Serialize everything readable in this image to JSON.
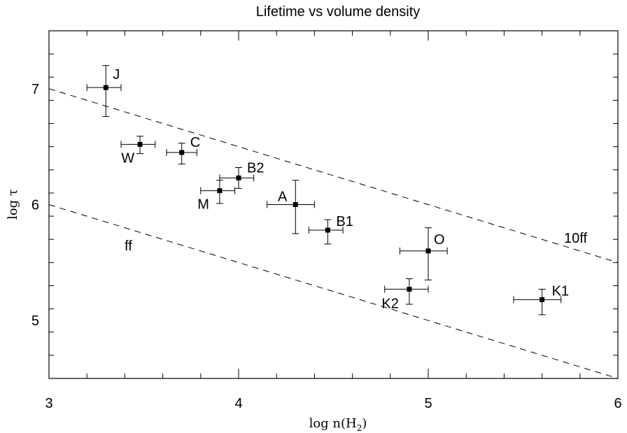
{
  "chart_data": {
    "type": "scatter",
    "title": "Lifetime vs volume density",
    "xlabel": "log n(H",
    "xlabel_subscript": "2",
    "xlabel_suffix": ")",
    "ylabel": "log τ",
    "xlim": [
      3,
      6
    ],
    "ylim": [
      4.5,
      7.5
    ],
    "x_ticks": [
      3,
      4,
      5,
      6
    ],
    "y_ticks": [
      5,
      6,
      7
    ],
    "x_minor_step": 0.2,
    "y_minor_step": 0.2,
    "grid": false,
    "points": [
      {
        "label": "J",
        "x": 3.3,
        "y": 7.01,
        "xerr": [
          0.1,
          0.08
        ],
        "yerr": [
          0.25,
          0.19
        ]
      },
      {
        "label": "W",
        "x": 3.48,
        "y": 6.52,
        "xerr": [
          0.1,
          0.08
        ],
        "yerr": [
          0.08,
          0.07
        ]
      },
      {
        "label": "C",
        "x": 3.7,
        "y": 6.45,
        "xerr": [
          0.08,
          0.08
        ],
        "yerr": [
          0.1,
          0.08
        ]
      },
      {
        "label": "B2",
        "x": 4.0,
        "y": 6.23,
        "xerr": [
          0.1,
          0.08
        ],
        "yerr": [
          0.09,
          0.09
        ]
      },
      {
        "label": "M",
        "x": 3.9,
        "y": 6.12,
        "xerr": [
          0.1,
          0.08
        ],
        "yerr": [
          0.11,
          0.09
        ]
      },
      {
        "label": "A",
        "x": 4.3,
        "y": 6.0,
        "xerr": [
          0.15,
          0.1
        ],
        "yerr": [
          0.25,
          0.21
        ]
      },
      {
        "label": "B1",
        "x": 4.47,
        "y": 5.78,
        "xerr": [
          0.1,
          0.08
        ],
        "yerr": [
          0.12,
          0.09
        ]
      },
      {
        "label": "O",
        "x": 5.0,
        "y": 5.6,
        "xerr": [
          0.15,
          0.1
        ],
        "yerr": [
          0.25,
          0.2
        ]
      },
      {
        "label": "K2",
        "x": 4.9,
        "y": 5.27,
        "xerr": [
          0.13,
          0.1
        ],
        "yerr": [
          0.13,
          0.09
        ]
      },
      {
        "label": "K1",
        "x": 5.6,
        "y": 5.18,
        "xerr": [
          0.15,
          0.1
        ],
        "yerr": [
          0.13,
          0.09
        ]
      }
    ],
    "lines": [
      {
        "label": "10ff",
        "style": "dashed",
        "x": [
          3,
          6
        ],
        "y": [
          7.0,
          5.5
        ]
      },
      {
        "label": "ff",
        "style": "dashed",
        "x": [
          3,
          6
        ],
        "y": [
          6.0,
          4.5
        ]
      }
    ]
  }
}
